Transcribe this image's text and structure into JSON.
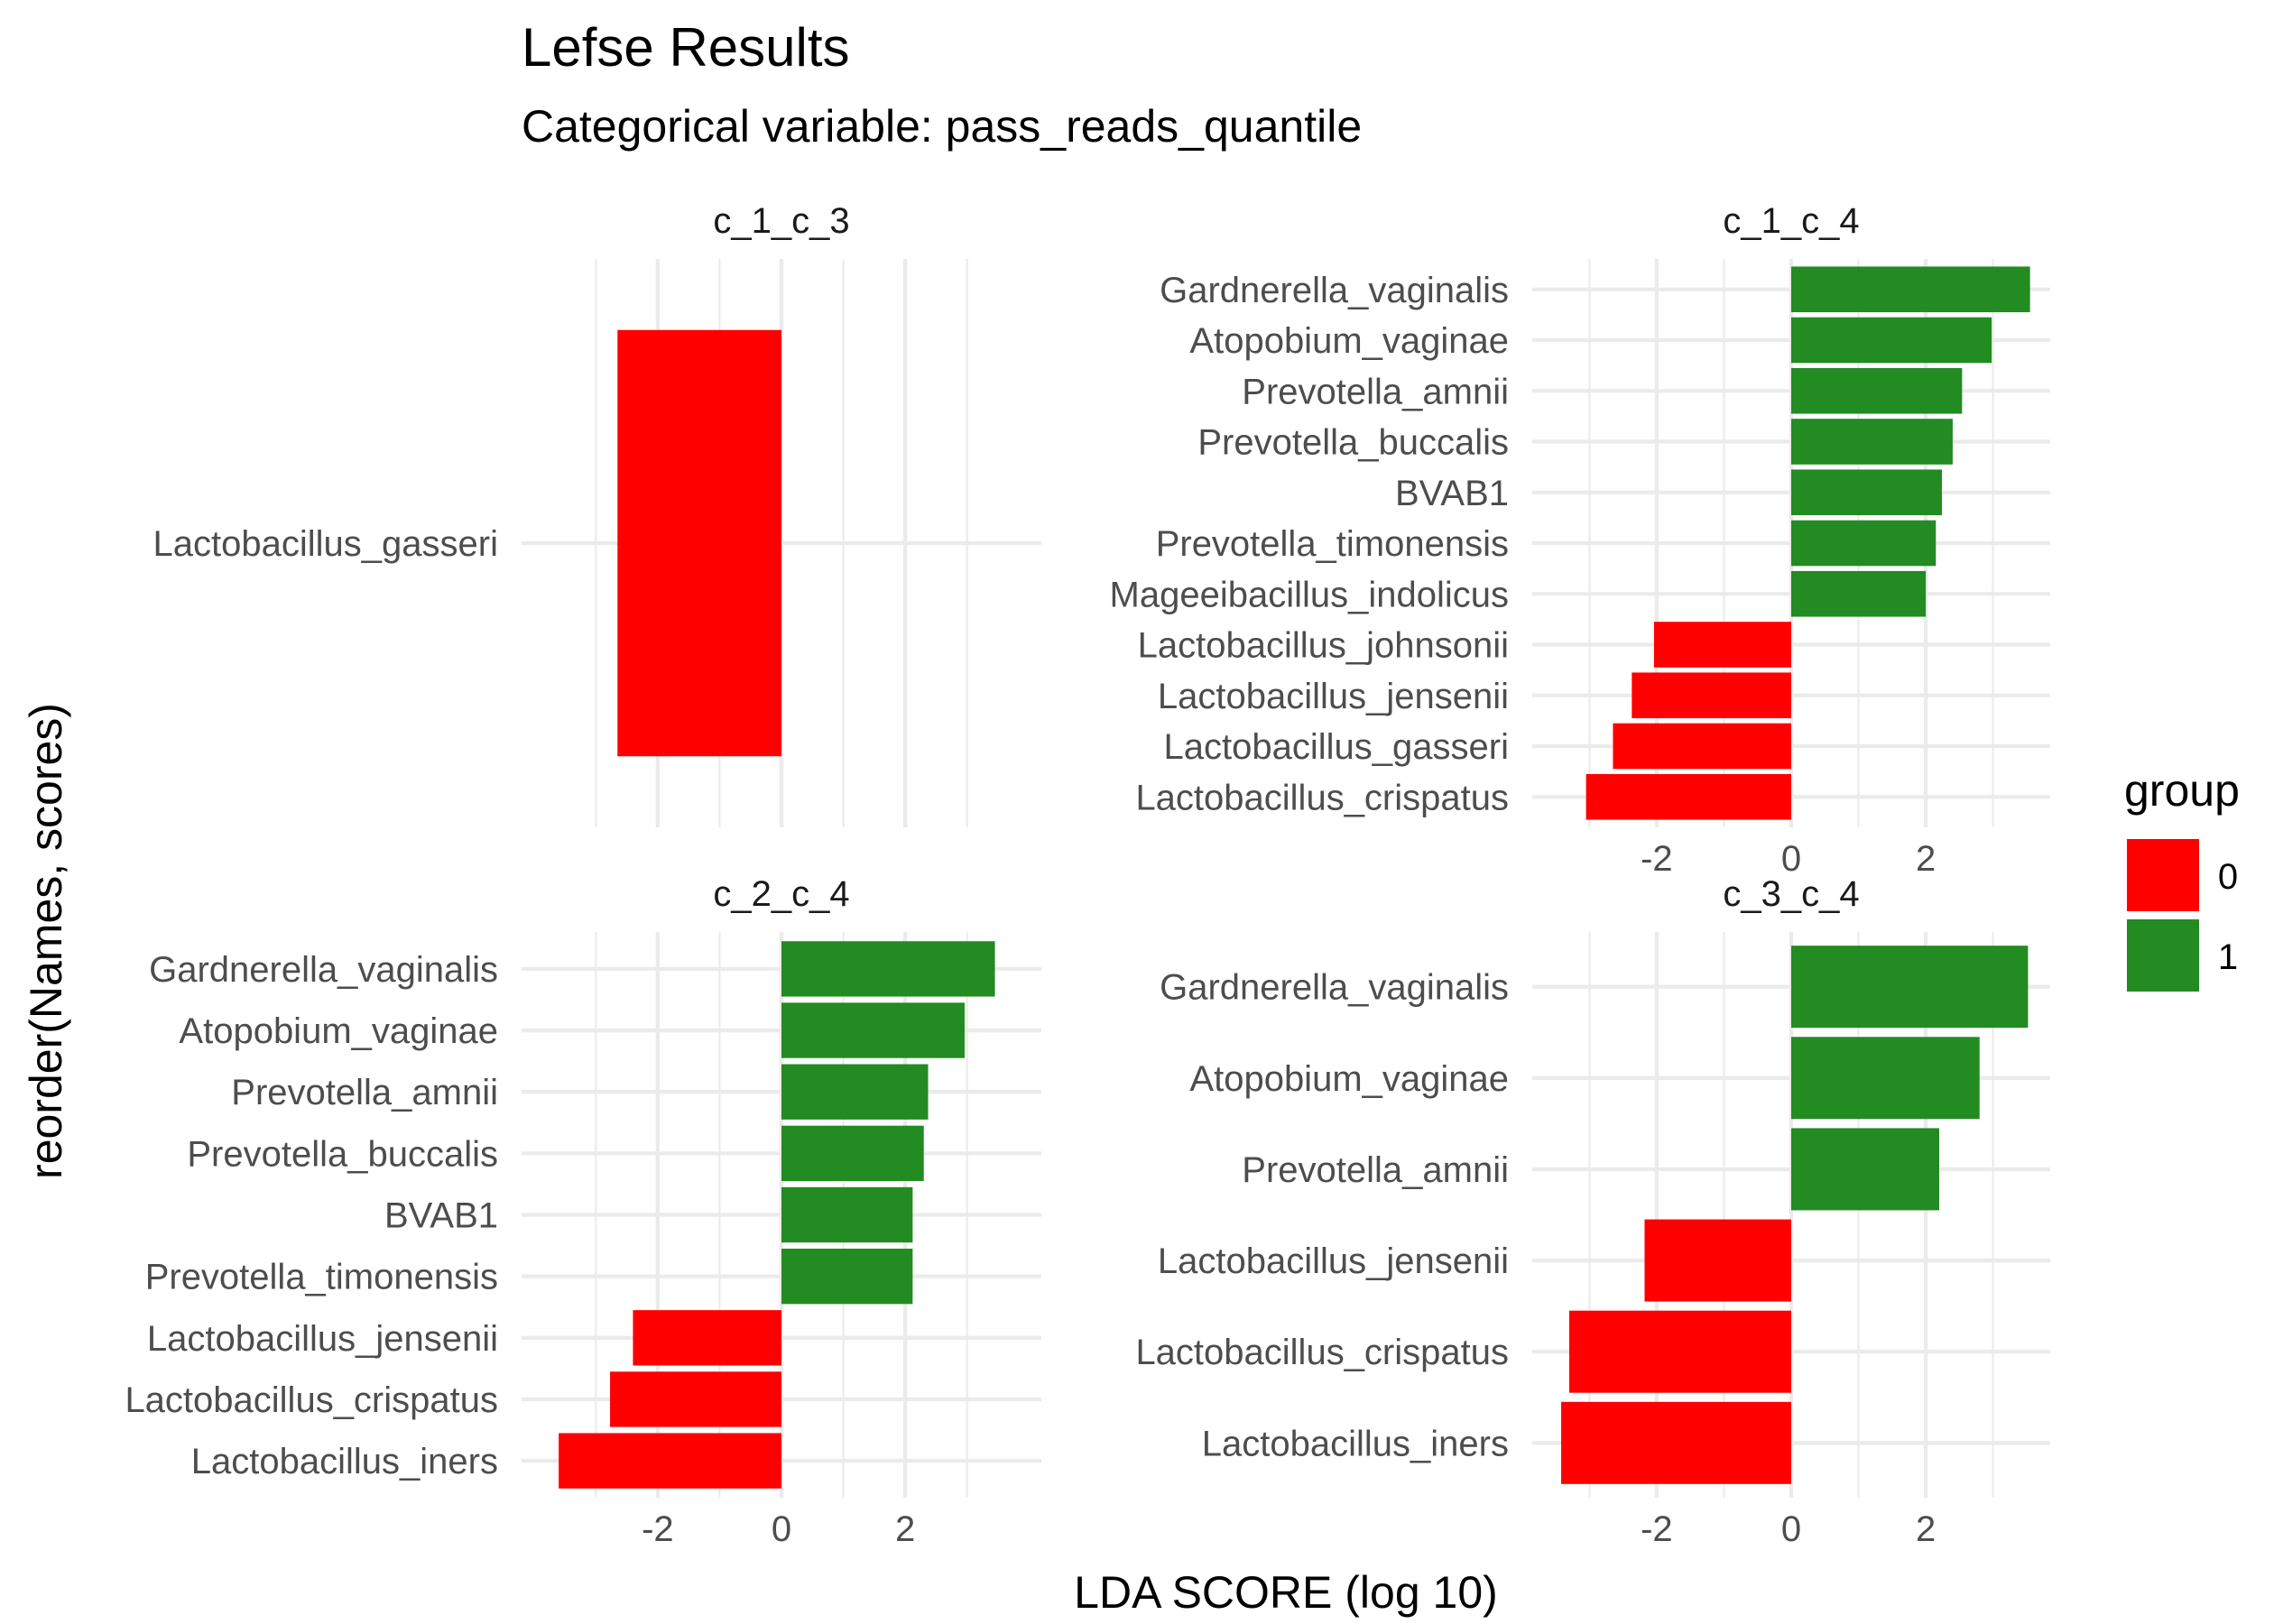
{
  "chart_data": {
    "type": "bar",
    "orientation": "horizontal",
    "title": "Lefse Results",
    "subtitle": "Categorical variable: pass_reads_quantile",
    "xlabel": "LDA SCORE (log 10)",
    "ylabel": "reorder(Names, scores)",
    "legend": {
      "title": "group",
      "position": "right",
      "items": [
        {
          "label": "0",
          "color": "#FF0000"
        },
        {
          "label": "1",
          "color": "#228B22"
        }
      ]
    },
    "grid": true,
    "panels": [
      {
        "strip": "c_1_c_3",
        "xlim": [
          -4.2,
          4.2
        ],
        "x_ticks": [
          -2,
          0,
          2
        ],
        "show_x_ticks": false,
        "bars": [
          {
            "name": "Lactobacillus_gasseri",
            "value": -2.65,
            "group": "0"
          }
        ]
      },
      {
        "strip": "c_1_c_4",
        "xlim": [
          -3.85,
          3.85
        ],
        "x_ticks": [
          -2,
          0,
          2
        ],
        "show_x_ticks": true,
        "bars": [
          {
            "name": "Lactobacillus_crispatus",
            "value": -3.05,
            "group": "0"
          },
          {
            "name": "Lactobacillus_gasseri",
            "value": -2.65,
            "group": "0"
          },
          {
            "name": "Lactobacillus_jensenii",
            "value": -2.37,
            "group": "0"
          },
          {
            "name": "Lactobacillus_johnsonii",
            "value": -2.04,
            "group": "0"
          },
          {
            "name": "Mageeibacillus_indolicus",
            "value": 2.0,
            "group": "1"
          },
          {
            "name": "Prevotella_timonensis",
            "value": 2.15,
            "group": "1"
          },
          {
            "name": "BVAB1",
            "value": 2.24,
            "group": "1"
          },
          {
            "name": "Prevotella_buccalis",
            "value": 2.4,
            "group": "1"
          },
          {
            "name": "Prevotella_amnii",
            "value": 2.54,
            "group": "1"
          },
          {
            "name": "Atopobium_vaginae",
            "value": 2.98,
            "group": "1"
          },
          {
            "name": "Gardnerella_vaginalis",
            "value": 3.55,
            "group": "1"
          }
        ]
      },
      {
        "strip": "c_2_c_4",
        "xlim": [
          -4.2,
          4.2
        ],
        "x_ticks": [
          -2,
          0,
          2
        ],
        "show_x_ticks": true,
        "bars": [
          {
            "name": "Lactobacillus_iners",
            "value": -3.6,
            "group": "0"
          },
          {
            "name": "Lactobacillus_crispatus",
            "value": -2.77,
            "group": "0"
          },
          {
            "name": "Lactobacillus_jensenii",
            "value": -2.4,
            "group": "0"
          },
          {
            "name": "Prevotella_timonensis",
            "value": 2.12,
            "group": "1"
          },
          {
            "name": "BVAB1",
            "value": 2.12,
            "group": "1"
          },
          {
            "name": "Prevotella_buccalis",
            "value": 2.3,
            "group": "1"
          },
          {
            "name": "Prevotella_amnii",
            "value": 2.37,
            "group": "1"
          },
          {
            "name": "Atopobium_vaginae",
            "value": 2.96,
            "group": "1"
          },
          {
            "name": "Gardnerella_vaginalis",
            "value": 3.45,
            "group": "1"
          }
        ]
      },
      {
        "strip": "c_3_c_4",
        "xlim": [
          -3.85,
          3.85
        ],
        "x_ticks": [
          -2,
          0,
          2
        ],
        "show_x_ticks": true,
        "bars": [
          {
            "name": "Lactobacillus_iners",
            "value": -3.42,
            "group": "0"
          },
          {
            "name": "Lactobacillus_crispatus",
            "value": -3.3,
            "group": "0"
          },
          {
            "name": "Lactobacillus_jensenii",
            "value": -2.18,
            "group": "0"
          },
          {
            "name": "Prevotella_amnii",
            "value": 2.2,
            "group": "1"
          },
          {
            "name": "Atopobium_vaginae",
            "value": 2.8,
            "group": "1"
          },
          {
            "name": "Gardnerella_vaginalis",
            "value": 3.52,
            "group": "1"
          }
        ]
      }
    ]
  }
}
